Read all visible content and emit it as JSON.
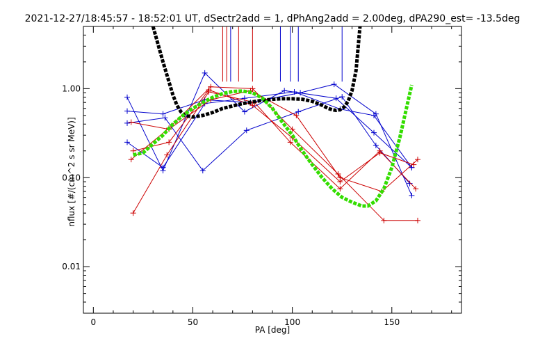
{
  "chart_data": {
    "type": "line",
    "title": "2021-12-27/18:45:57 - 18:52:01 UT, dSectr2add = 1, dPhAng2add = 2.00deg, dPA290_est= -13.5deg",
    "xlabel": "PA [deg]",
    "ylabel": "nflux [#/(cm^2 s sr MeV)]",
    "xlim": [
      -5,
      185
    ],
    "ylim": [
      0.003,
      5.0
    ],
    "yscale": "log",
    "x_ticks": [
      0,
      50,
      100,
      150
    ],
    "x_tick_labels": [
      "0",
      "50",
      "100",
      "150"
    ],
    "y_ticks": [
      0.01,
      0.1,
      1.0
    ],
    "y_tick_labels": [
      "0.01",
      "0.10",
      "1.00"
    ],
    "grid": false,
    "series": [
      {
        "color": "#0000cc",
        "kind": "line-plus",
        "x": [
          17,
          35,
          56,
          76,
          96,
          122,
          141,
          160
        ],
        "y": [
          0.8,
          0.12,
          1.5,
          0.55,
          0.95,
          0.78,
          0.32,
          0.13
        ]
      },
      {
        "color": "#0000cc",
        "kind": "line-plus",
        "x": [
          17,
          35,
          56,
          79,
          104,
          121,
          142,
          160
        ],
        "y": [
          0.56,
          0.52,
          0.75,
          0.7,
          0.9,
          1.12,
          0.52,
          0.063
        ]
      },
      {
        "color": "#0000cc",
        "kind": "line-plus",
        "x": [
          17,
          36,
          55,
          77,
          103,
          125,
          142,
          159
        ],
        "y": [
          0.41,
          0.47,
          0.12,
          0.34,
          0.55,
          0.81,
          0.23,
          0.086
        ]
      },
      {
        "color": "#0000cc",
        "kind": "line-plus",
        "x": [
          17,
          35,
          56,
          76,
          101,
          124,
          141,
          160
        ],
        "y": [
          0.25,
          0.13,
          0.68,
          0.78,
          0.92,
          0.59,
          0.5,
          0.13
        ]
      },
      {
        "color": "#cc0000",
        "kind": "line-plus",
        "x": [
          19,
          38,
          59,
          80,
          100,
          123,
          146,
          163
        ],
        "y": [
          0.16,
          0.36,
          1.05,
          1.0,
          0.35,
          0.11,
          0.033,
          0.033
        ]
      },
      {
        "color": "#cc0000",
        "kind": "line-plus",
        "x": [
          20,
          37,
          58,
          81,
          99,
          124,
          144,
          162
        ],
        "y": [
          0.04,
          0.18,
          0.92,
          0.7,
          0.25,
          0.075,
          0.2,
          0.075
        ]
      },
      {
        "color": "#cc0000",
        "kind": "line-plus",
        "x": [
          19,
          38,
          59,
          79,
          102,
          124,
          145,
          163
        ],
        "y": [
          0.42,
          0.35,
          0.75,
          0.95,
          0.5,
          0.1,
          0.07,
          0.16
        ]
      },
      {
        "color": "#cc0000",
        "kind": "line-plus",
        "x": [
          20,
          38,
          58,
          80,
          100,
          124,
          144,
          161
        ],
        "y": [
          0.2,
          0.25,
          0.97,
          0.65,
          0.28,
          0.09,
          0.19,
          0.14
        ]
      },
      {
        "color": "#000000",
        "kind": "thick-dotted",
        "x": [
          30,
          35,
          40,
          42,
          44,
          46,
          50,
          55,
          60,
          65,
          70,
          75,
          80,
          85,
          90,
          95,
          100,
          105,
          110,
          115,
          118,
          120,
          122,
          124,
          126,
          128,
          130,
          132,
          134
        ],
        "y": [
          5.0,
          2.0,
          0.85,
          0.65,
          0.55,
          0.5,
          0.48,
          0.5,
          0.54,
          0.6,
          0.64,
          0.68,
          0.71,
          0.74,
          0.76,
          0.77,
          0.77,
          0.76,
          0.72,
          0.65,
          0.6,
          0.58,
          0.57,
          0.58,
          0.62,
          0.72,
          0.95,
          1.6,
          5.0
        ]
      },
      {
        "color": "#33dd00",
        "kind": "thick-dotted",
        "x": [
          20,
          25,
          30,
          35,
          40,
          45,
          50,
          55,
          60,
          65,
          70,
          75,
          80,
          85,
          90,
          95,
          100,
          105,
          110,
          115,
          120,
          125,
          130,
          135,
          138,
          142,
          146,
          150,
          154,
          158,
          160
        ],
        "y": [
          0.18,
          0.19,
          0.24,
          0.3,
          0.4,
          0.5,
          0.6,
          0.7,
          0.8,
          0.88,
          0.93,
          0.94,
          0.9,
          0.78,
          0.6,
          0.42,
          0.3,
          0.2,
          0.14,
          0.1,
          0.075,
          0.06,
          0.053,
          0.048,
          0.048,
          0.055,
          0.075,
          0.13,
          0.28,
          0.7,
          1.1
        ]
      },
      {
        "color": "#cc0000",
        "kind": "vline",
        "x": [
          65,
          67,
          73,
          80
        ],
        "y_from": 1.2,
        "y_to": 5.0
      },
      {
        "color": "#0000cc",
        "kind": "vline",
        "x": [
          69,
          94,
          99,
          103,
          125
        ],
        "y_from": 1.2,
        "y_to": 5.0
      }
    ]
  }
}
